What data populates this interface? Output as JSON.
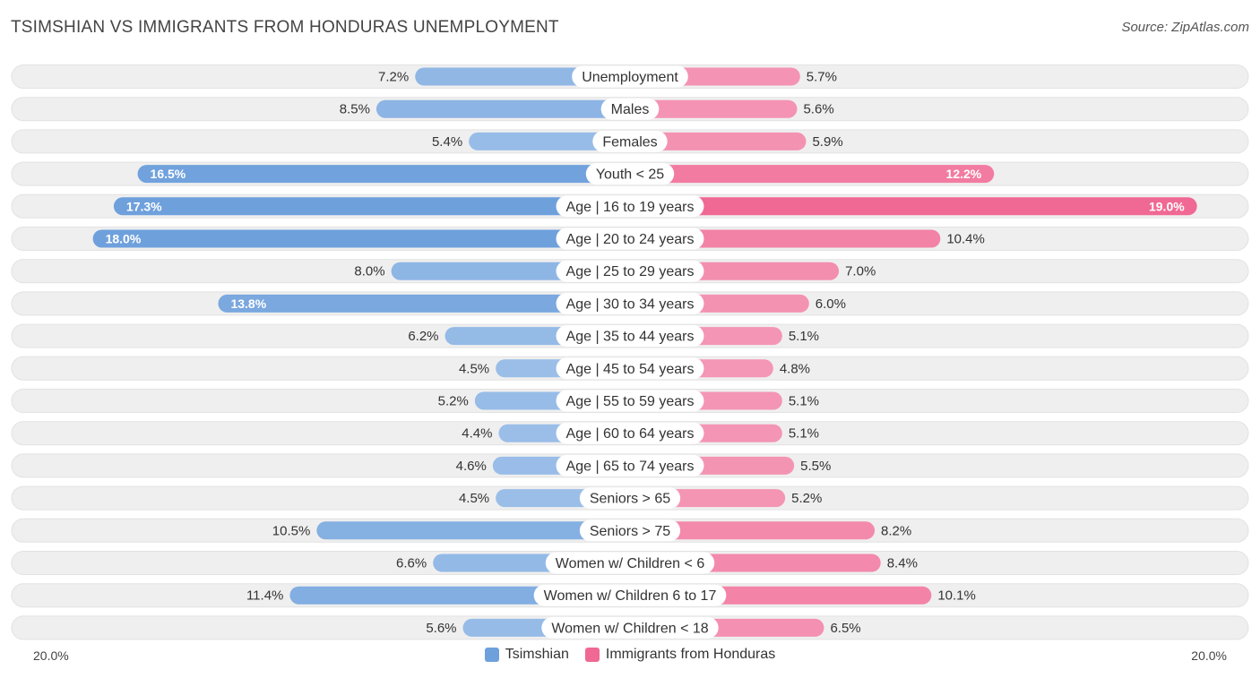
{
  "header": {
    "title": "TSIMSHIAN VS IMMIGRANTS FROM HONDURAS UNEMPLOYMENT",
    "source": "Source: ZipAtlas.com"
  },
  "colors": {
    "tsimshian": "#6ea0dc",
    "tsimshian_light": "#a9c8ec",
    "honduras": "#f06894",
    "honduras_light": "#f6a8c2",
    "row_bg": "#efefef"
  },
  "chart_data": {
    "type": "bar",
    "orientation": "horizontal-diverging",
    "title": "TSIMSHIAN VS IMMIGRANTS FROM HONDURAS UNEMPLOYMENT",
    "xlim": [
      -20,
      20
    ],
    "axis_left_label": "20.0%",
    "axis_right_label": "20.0%",
    "legend": [
      "Tsimshian",
      "Immigrants from Honduras"
    ],
    "categories": [
      "Unemployment",
      "Males",
      "Females",
      "Youth < 25",
      "Age | 16 to 19 years",
      "Age | 20 to 24 years",
      "Age | 25 to 29 years",
      "Age | 30 to 34 years",
      "Age | 35 to 44 years",
      "Age | 45 to 54 years",
      "Age | 55 to 59 years",
      "Age | 60 to 64 years",
      "Age | 65 to 74 years",
      "Seniors > 65",
      "Seniors > 75",
      "Women w/ Children < 6",
      "Women w/ Children 6 to 17",
      "Women w/ Children < 18"
    ],
    "series": [
      {
        "name": "Tsimshian",
        "values": [
          7.2,
          8.5,
          5.4,
          16.5,
          17.3,
          18.0,
          8.0,
          13.8,
          6.2,
          4.5,
          5.2,
          4.4,
          4.6,
          4.5,
          10.5,
          6.6,
          11.4,
          5.6
        ],
        "labels": [
          "7.2%",
          "8.5%",
          "5.4%",
          "16.5%",
          "17.3%",
          "18.0%",
          "8.0%",
          "13.8%",
          "6.2%",
          "4.5%",
          "5.2%",
          "4.4%",
          "4.6%",
          "4.5%",
          "10.5%",
          "6.6%",
          "11.4%",
          "5.6%"
        ]
      },
      {
        "name": "Immigrants from Honduras",
        "values": [
          5.7,
          5.6,
          5.9,
          12.2,
          19.0,
          10.4,
          7.0,
          6.0,
          5.1,
          4.8,
          5.1,
          5.1,
          5.5,
          5.2,
          8.2,
          8.4,
          10.1,
          6.5
        ],
        "labels": [
          "5.7%",
          "5.6%",
          "5.9%",
          "12.2%",
          "19.0%",
          "10.4%",
          "7.0%",
          "6.0%",
          "5.1%",
          "4.8%",
          "5.1%",
          "5.1%",
          "5.5%",
          "5.2%",
          "8.2%",
          "8.4%",
          "10.1%",
          "6.5%"
        ]
      }
    ]
  }
}
